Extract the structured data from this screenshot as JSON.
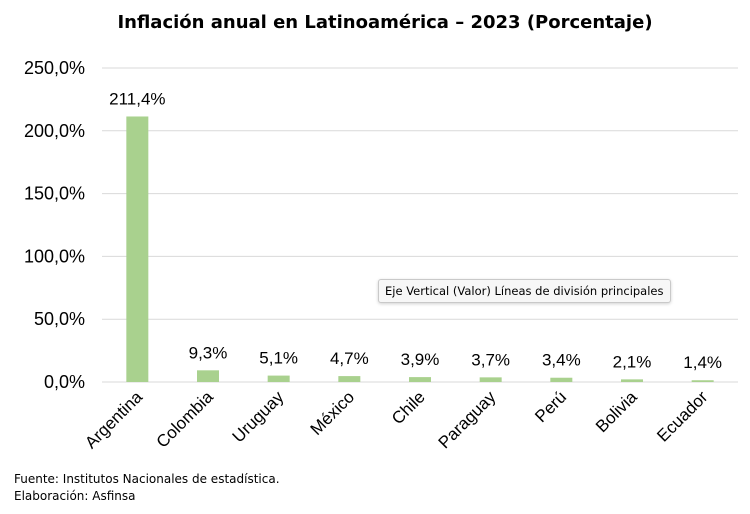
{
  "chart_data": {
    "type": "bar",
    "title": "Inflación anual en Latinoamérica – 2023 (Porcentaje)",
    "categories": [
      "Argentina",
      "Colombia",
      "Uruguay",
      "México",
      "Chile",
      "Paraguay",
      "Perú",
      "Bolivia",
      "Ecuador"
    ],
    "values": [
      211.4,
      9.3,
      5.1,
      4.7,
      3.9,
      3.7,
      3.4,
      2.1,
      1.4
    ],
    "value_labels": [
      "211,4%",
      "9,3%",
      "5,1%",
      "4,7%",
      "3,9%",
      "3,7%",
      "3,4%",
      "2,1%",
      "1,4%"
    ],
    "ylim": [
      0,
      250
    ],
    "yticks": [
      0,
      50,
      100,
      150,
      200,
      250
    ],
    "ytick_labels": [
      "0,0%",
      "50,0%",
      "100,0%",
      "150,0%",
      "200,0%",
      "250,0%"
    ],
    "xlabel": "",
    "ylabel": "",
    "grid": true,
    "bar_color": "#a9d18e",
    "grid_color": "#d9d9d9"
  },
  "footer": {
    "source": "Fuente: Institutos Nacionales de estadística.",
    "credit": "Elaboración: Asfinsa"
  },
  "tooltip": {
    "text": "Eje Vertical (Valor)  Líneas de división principales"
  }
}
